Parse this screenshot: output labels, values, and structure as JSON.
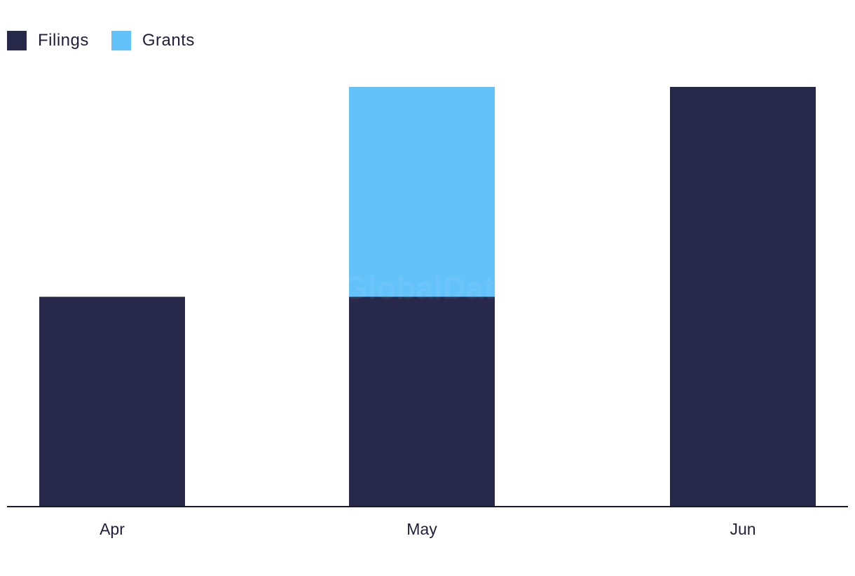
{
  "chart_data": {
    "type": "bar",
    "stacked": true,
    "categories": [
      "Apr",
      "May",
      "Jun"
    ],
    "series": [
      {
        "name": "Filings",
        "color": "#27284a",
        "values": [
          1,
          1,
          2
        ]
      },
      {
        "name": "Grants",
        "color": "#63c2fa",
        "values": [
          0,
          1,
          0
        ]
      }
    ],
    "ylim": [
      0,
      2
    ],
    "grid": false,
    "legend_position": "top-left",
    "watermark": "GlobalData"
  }
}
